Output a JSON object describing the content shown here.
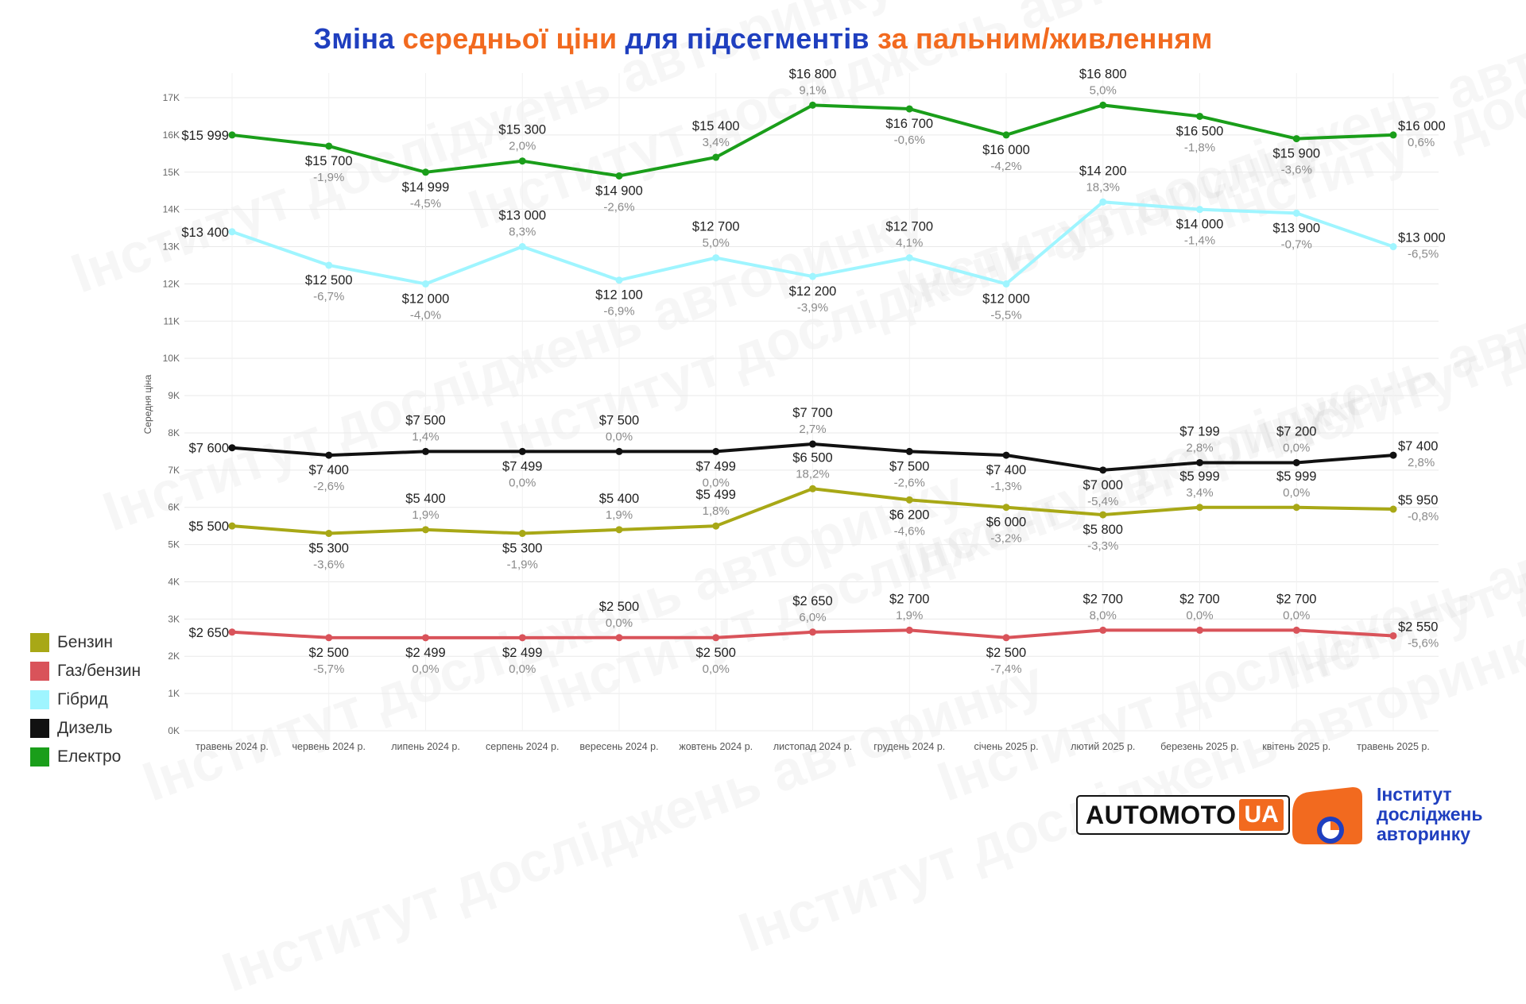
{
  "title": {
    "part1": "Зміна",
    "part2": "середньої ціни",
    "part3": "для підсегментів",
    "part4": "за пальним/живленням"
  },
  "logos": {
    "automoto_main": "AUTOMOTO",
    "automoto_suffix": "UA",
    "institute_line1": "Інститут",
    "institute_line2": "досліджень",
    "institute_line3": "авторинку"
  },
  "watermark_text": "Інститут досліджень авторинку",
  "chart_data": {
    "type": "line",
    "ylabel": "Середня ціна",
    "ylim": [
      0,
      17000
    ],
    "yticks": [
      {
        "v": 0,
        "label": "0K"
      },
      {
        "v": 1000,
        "label": "1K"
      },
      {
        "v": 2000,
        "label": "2K"
      },
      {
        "v": 3000,
        "label": "3K"
      },
      {
        "v": 4000,
        "label": "4K"
      },
      {
        "v": 5000,
        "label": "5K"
      },
      {
        "v": 6000,
        "label": "6K"
      },
      {
        "v": 7000,
        "label": "7K"
      },
      {
        "v": 8000,
        "label": "8K"
      },
      {
        "v": 9000,
        "label": "9K"
      },
      {
        "v": 10000,
        "label": "10K"
      },
      {
        "v": 11000,
        "label": "11K"
      },
      {
        "v": 12000,
        "label": "12K"
      },
      {
        "v": 13000,
        "label": "13K"
      },
      {
        "v": 14000,
        "label": "14K"
      },
      {
        "v": 15000,
        "label": "15K"
      },
      {
        "v": 16000,
        "label": "16K"
      },
      {
        "v": 17000,
        "label": "17K"
      }
    ],
    "categories": [
      "травень 2024 р.",
      "червень 2024 р.",
      "липень 2024 р.",
      "серпень 2024 р.",
      "вересень 2024 р.",
      "жовтень 2024 р.",
      "листопад 2024 р.",
      "грудень 2024 р.",
      "січень 2025 р.",
      "лютий 2025 р.",
      "березень 2025 р.",
      "квітень 2025 р.",
      "травень 2025 р."
    ],
    "grid": true,
    "legend_position": "bottom-left",
    "series": [
      {
        "name": "Бензин",
        "color": "#a8a816",
        "values": [
          5500,
          5300,
          5400,
          5300,
          5400,
          5499,
          6500,
          6200,
          6000,
          5800,
          5999,
          5999,
          5950
        ],
        "labels": [
          "$5 500",
          "$5 300",
          "$5 400",
          "$5 300",
          "$5 400",
          "$5 499",
          "$6 500",
          "$6 200",
          "$6 000",
          "$5 800",
          "$5 999",
          "$5 999",
          "$5 950"
        ],
        "changes": [
          "",
          "-3,6%",
          "1,9%",
          "-1,9%",
          "1,9%",
          "1,8%",
          "18,2%",
          "-4,6%",
          "-3,2%",
          "-3,3%",
          "3,4%",
          "0,0%",
          "-0,8%"
        ]
      },
      {
        "name": "Газ/бензин",
        "color": "#d9535a",
        "values": [
          2650,
          2500,
          2499,
          2499,
          2500,
          2500,
          2650,
          2700,
          2500,
          2700,
          2700,
          2700,
          2550
        ],
        "labels": [
          "$2 650",
          "$2 500",
          "$2 499",
          "$2 499",
          "$2 500",
          "$2 500",
          "$2 650",
          "$2 700",
          "$2 500",
          "$2 700",
          "$2 700",
          "$2 700",
          "$2 550"
        ],
        "changes": [
          "",
          "-5,7%",
          "0,0%",
          "0,0%",
          "0,0%",
          "0,0%",
          "6,0%",
          "1,9%",
          "-7,4%",
          "8,0%",
          "0,0%",
          "0,0%",
          "-5,6%"
        ]
      },
      {
        "name": "Гібрид",
        "color": "#9ff5ff",
        "values": [
          13400,
          12500,
          12000,
          13000,
          12100,
          12700,
          12200,
          12700,
          12000,
          14200,
          14000,
          13900,
          13000
        ],
        "labels": [
          "$13 400",
          "$12 500",
          "$12 000",
          "$13 000",
          "$12 100",
          "$12 700",
          "$12 200",
          "$12 700",
          "$12 000",
          "$14 200",
          "$14 000",
          "$13 900",
          "$13 000"
        ],
        "changes": [
          "",
          "-6,7%",
          "-4,0%",
          "8,3%",
          "-6,9%",
          "5,0%",
          "-3,9%",
          "4,1%",
          "-5,5%",
          "18,3%",
          "-1,4%",
          "-0,7%",
          "-6,5%"
        ]
      },
      {
        "name": "Дизель",
        "color": "#111111",
        "values": [
          7600,
          7400,
          7500,
          7499,
          7500,
          7499,
          7700,
          7500,
          7400,
          7000,
          7199,
          7200,
          7400
        ],
        "labels": [
          "$7 600",
          "$7 400",
          "$7 500",
          "$7 499",
          "$7 500",
          "$7 499",
          "$7 700",
          "$7 500",
          "$7 400",
          "$7 000",
          "$7 199",
          "$7 200",
          "$7 400"
        ],
        "changes": [
          "",
          "-2,6%",
          "1,4%",
          "0,0%",
          "0,0%",
          "0,0%",
          "2,7%",
          "-2,6%",
          "-1,3%",
          "-5,4%",
          "2,8%",
          "0,0%",
          "2,8%"
        ]
      },
      {
        "name": "Електро",
        "color": "#1a9e1a",
        "values": [
          15999,
          15700,
          14999,
          15300,
          14900,
          15400,
          16800,
          16700,
          16000,
          16800,
          16500,
          15900,
          16000
        ],
        "labels": [
          "$15 999",
          "$15 700",
          "$14 999",
          "$15 300",
          "$14 900",
          "$15 400",
          "$16 800",
          "$16 700",
          "$16 000",
          "$16 800",
          "$16 500",
          "$15 900",
          "$16 000"
        ],
        "changes": [
          "",
          "-1,9%",
          "-4,5%",
          "2,0%",
          "-2,6%",
          "3,4%",
          "9,1%",
          "-0,6%",
          "-4,2%",
          "5,0%",
          "-1,8%",
          "-3,6%",
          "0,6%"
        ]
      }
    ]
  }
}
